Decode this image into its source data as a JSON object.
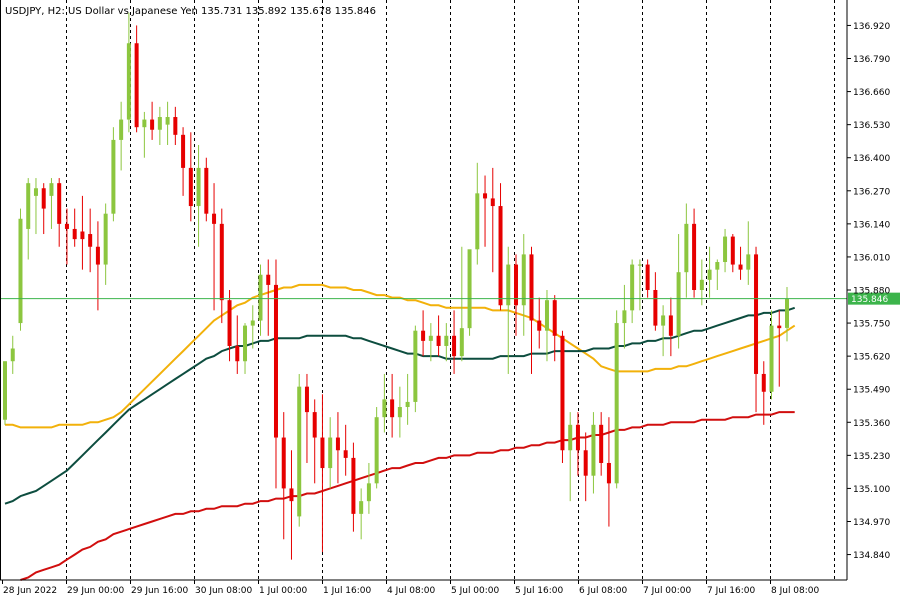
{
  "header": {
    "symbol_line": "USDJPY, H2:  US Dollar vs Japanese Yen  135.731 135.892 135.678 135.846"
  },
  "colors": {
    "background": "#ffffff",
    "bull": "#8cc63f",
    "bear": "#e60000",
    "grid": "#000000",
    "ma_fast": "#f2b10a",
    "ma_mid": "#0d4d3f",
    "ma_slow": "#d10e0e",
    "price_line": "#3cb44b",
    "price_label_bg": "#3cb44b",
    "axis_text": "#000000"
  },
  "chart_data": {
    "type": "candlestick",
    "symbol": "USDJPY",
    "timeframe": "H2",
    "description": "US Dollar vs Japanese Yen",
    "ohlc_current": {
      "open": 135.731,
      "high": 135.892,
      "low": 135.678,
      "close": 135.846
    },
    "current_price_label": "135.846",
    "current_price": 135.846,
    "ylim": [
      134.74,
      137.02
    ],
    "y_ticks": [
      "136.920",
      "136.790",
      "136.660",
      "136.530",
      "136.400",
      "136.270",
      "136.140",
      "136.010",
      "135.880",
      "135.750",
      "135.620",
      "135.490",
      "135.360",
      "135.230",
      "135.100",
      "134.970",
      "134.840"
    ],
    "x_ticks": [
      "28 Jun 2022",
      "29 Jun 00:00",
      "29 Jun 16:00",
      "30 Jun 08:00",
      "1 Jul 00:00",
      "1 Jul 16:00",
      "4 Jul 08:00",
      "5 Jul 00:00",
      "5 Jul 16:00",
      "6 Jul 08:00",
      "7 Jul 00:00",
      "7 Jul 16:00",
      "8 Jul 08:00"
    ],
    "candles": [
      {
        "o": 135.37,
        "h": 135.6,
        "l": 135.35,
        "c": 135.6
      },
      {
        "o": 135.6,
        "h": 135.7,
        "l": 135.55,
        "c": 135.65
      },
      {
        "o": 135.75,
        "h": 136.2,
        "l": 135.72,
        "c": 136.16
      },
      {
        "o": 136.12,
        "h": 136.32,
        "l": 136.0,
        "c": 136.3
      },
      {
        "o": 136.25,
        "h": 136.32,
        "l": 136.1,
        "c": 136.28
      },
      {
        "o": 136.28,
        "h": 136.3,
        "l": 136.1,
        "c": 136.2
      },
      {
        "o": 136.25,
        "h": 136.32,
        "l": 136.12,
        "c": 136.3
      },
      {
        "o": 136.3,
        "h": 136.32,
        "l": 136.05,
        "c": 136.14
      },
      {
        "o": 136.14,
        "h": 136.2,
        "l": 135.98,
        "c": 136.12
      },
      {
        "o": 136.12,
        "h": 136.2,
        "l": 136.05,
        "c": 136.08
      },
      {
        "o": 136.11,
        "h": 136.25,
        "l": 135.96,
        "c": 136.08
      },
      {
        "o": 136.1,
        "h": 136.2,
        "l": 135.95,
        "c": 136.05
      },
      {
        "o": 136.05,
        "h": 136.15,
        "l": 135.8,
        "c": 135.98
      },
      {
        "o": 135.98,
        "h": 136.22,
        "l": 135.9,
        "c": 136.18
      },
      {
        "o": 136.18,
        "h": 136.52,
        "l": 136.15,
        "c": 136.47
      },
      {
        "o": 136.47,
        "h": 136.62,
        "l": 136.35,
        "c": 136.55
      },
      {
        "o": 136.55,
        "h": 136.97,
        "l": 136.5,
        "c": 136.85
      },
      {
        "o": 136.85,
        "h": 136.92,
        "l": 136.5,
        "c": 136.52
      },
      {
        "o": 136.52,
        "h": 136.58,
        "l": 136.4,
        "c": 136.55
      },
      {
        "o": 136.55,
        "h": 136.62,
        "l": 136.47,
        "c": 136.51
      },
      {
        "o": 136.51,
        "h": 136.6,
        "l": 136.45,
        "c": 136.56
      },
      {
        "o": 136.53,
        "h": 136.62,
        "l": 136.45,
        "c": 136.56
      },
      {
        "o": 136.56,
        "h": 136.6,
        "l": 136.45,
        "c": 136.49
      },
      {
        "o": 136.49,
        "h": 136.52,
        "l": 136.25,
        "c": 136.36
      },
      {
        "o": 136.36,
        "h": 136.5,
        "l": 136.15,
        "c": 136.21
      },
      {
        "o": 136.21,
        "h": 136.45,
        "l": 136.05,
        "c": 136.36
      },
      {
        "o": 136.36,
        "h": 136.4,
        "l": 136.15,
        "c": 136.18
      },
      {
        "o": 136.18,
        "h": 136.3,
        "l": 135.8,
        "c": 136.14
      },
      {
        "o": 136.14,
        "h": 136.2,
        "l": 135.75,
        "c": 135.84
      },
      {
        "o": 135.84,
        "h": 135.88,
        "l": 135.6,
        "c": 135.66
      },
      {
        "o": 135.66,
        "h": 135.78,
        "l": 135.55,
        "c": 135.6
      },
      {
        "o": 135.6,
        "h": 135.75,
        "l": 135.55,
        "c": 135.74
      },
      {
        "o": 135.74,
        "h": 135.82,
        "l": 135.65,
        "c": 135.76
      },
      {
        "o": 135.76,
        "h": 135.98,
        "l": 135.7,
        "c": 135.94
      },
      {
        "o": 135.94,
        "h": 136.0,
        "l": 135.7,
        "c": 135.9
      },
      {
        "o": 135.9,
        "h": 136.0,
        "l": 135.1,
        "c": 135.3
      },
      {
        "o": 135.3,
        "h": 135.4,
        "l": 134.9,
        "c": 135.1
      },
      {
        "o": 135.1,
        "h": 135.25,
        "l": 134.82,
        "c": 135.05
      },
      {
        "o": 134.99,
        "h": 135.55,
        "l": 134.95,
        "c": 135.5
      },
      {
        "o": 135.5,
        "h": 135.55,
        "l": 135.2,
        "c": 135.4
      },
      {
        "o": 135.4,
        "h": 135.45,
        "l": 135.12,
        "c": 135.3
      },
      {
        "o": 135.3,
        "h": 135.47,
        "l": 134.85,
        "c": 135.18
      },
      {
        "o": 135.18,
        "h": 135.38,
        "l": 135.1,
        "c": 135.3
      },
      {
        "o": 135.3,
        "h": 135.4,
        "l": 135.12,
        "c": 135.25
      },
      {
        "o": 135.25,
        "h": 135.35,
        "l": 135.15,
        "c": 135.22
      },
      {
        "o": 135.22,
        "h": 135.28,
        "l": 134.93,
        "c": 135.0
      },
      {
        "o": 135.0,
        "h": 135.1,
        "l": 134.9,
        "c": 135.05
      },
      {
        "o": 135.05,
        "h": 135.2,
        "l": 135.0,
        "c": 135.12
      },
      {
        "o": 135.12,
        "h": 135.42,
        "l": 135.1,
        "c": 135.38
      },
      {
        "o": 135.38,
        "h": 135.55,
        "l": 135.32,
        "c": 135.45
      },
      {
        "o": 135.45,
        "h": 135.55,
        "l": 135.3,
        "c": 135.38
      },
      {
        "o": 135.38,
        "h": 135.5,
        "l": 135.3,
        "c": 135.42
      },
      {
        "o": 135.42,
        "h": 135.55,
        "l": 135.35,
        "c": 135.44
      },
      {
        "o": 135.44,
        "h": 135.74,
        "l": 135.4,
        "c": 135.72
      },
      {
        "o": 135.72,
        "h": 135.8,
        "l": 135.62,
        "c": 135.68
      },
      {
        "o": 135.68,
        "h": 135.75,
        "l": 135.6,
        "c": 135.7
      },
      {
        "o": 135.7,
        "h": 135.78,
        "l": 135.62,
        "c": 135.66
      },
      {
        "o": 135.66,
        "h": 135.75,
        "l": 135.6,
        "c": 135.7
      },
      {
        "o": 135.7,
        "h": 135.8,
        "l": 135.55,
        "c": 135.62
      },
      {
        "o": 135.62,
        "h": 136.05,
        "l": 135.6,
        "c": 135.73
      },
      {
        "o": 135.73,
        "h": 136.02,
        "l": 135.7,
        "c": 136.04
      },
      {
        "o": 136.04,
        "h": 136.38,
        "l": 135.98,
        "c": 136.26
      },
      {
        "o": 136.26,
        "h": 136.33,
        "l": 136.05,
        "c": 136.24
      },
      {
        "o": 136.24,
        "h": 136.36,
        "l": 135.95,
        "c": 136.21
      },
      {
        "o": 136.21,
        "h": 136.3,
        "l": 135.8,
        "c": 135.82
      },
      {
        "o": 135.82,
        "h": 136.05,
        "l": 135.55,
        "c": 135.98
      },
      {
        "o": 135.98,
        "h": 136.02,
        "l": 135.7,
        "c": 135.82
      },
      {
        "o": 135.82,
        "h": 136.1,
        "l": 135.7,
        "c": 136.02
      },
      {
        "o": 136.02,
        "h": 136.05,
        "l": 135.55,
        "c": 135.76
      },
      {
        "o": 135.76,
        "h": 135.85,
        "l": 135.65,
        "c": 135.72
      },
      {
        "o": 135.72,
        "h": 135.88,
        "l": 135.6,
        "c": 135.84
      },
      {
        "o": 135.84,
        "h": 135.86,
        "l": 135.6,
        "c": 135.7
      },
      {
        "o": 135.7,
        "h": 135.72,
        "l": 135.2,
        "c": 135.25
      },
      {
        "o": 135.25,
        "h": 135.4,
        "l": 135.05,
        "c": 135.35
      },
      {
        "o": 135.35,
        "h": 135.4,
        "l": 135.15,
        "c": 135.25
      },
      {
        "o": 135.25,
        "h": 135.32,
        "l": 135.05,
        "c": 135.15
      },
      {
        "o": 135.15,
        "h": 135.4,
        "l": 135.08,
        "c": 135.35
      },
      {
        "o": 135.35,
        "h": 135.4,
        "l": 135.15,
        "c": 135.2
      },
      {
        "o": 135.2,
        "h": 135.38,
        "l": 134.95,
        "c": 135.12
      },
      {
        "o": 135.12,
        "h": 135.8,
        "l": 135.1,
        "c": 135.75
      },
      {
        "o": 135.75,
        "h": 135.9,
        "l": 135.65,
        "c": 135.8
      },
      {
        "o": 135.8,
        "h": 136.0,
        "l": 135.75,
        "c": 135.98
      },
      {
        "o": 135.98,
        "h": 136.0,
        "l": 135.8,
        "c": 135.98
      },
      {
        "o": 135.98,
        "h": 136.0,
        "l": 135.85,
        "c": 135.88
      },
      {
        "o": 135.88,
        "h": 135.95,
        "l": 135.72,
        "c": 135.74
      },
      {
        "o": 135.74,
        "h": 135.82,
        "l": 135.62,
        "c": 135.78
      },
      {
        "o": 135.78,
        "h": 135.85,
        "l": 135.62,
        "c": 135.7
      },
      {
        "o": 135.7,
        "h": 136.1,
        "l": 135.65,
        "c": 135.95
      },
      {
        "o": 135.95,
        "h": 136.22,
        "l": 135.85,
        "c": 136.14
      },
      {
        "o": 136.14,
        "h": 136.2,
        "l": 135.85,
        "c": 135.88
      },
      {
        "o": 135.88,
        "h": 136.0,
        "l": 135.82,
        "c": 135.92
      },
      {
        "o": 135.92,
        "h": 136.05,
        "l": 135.85,
        "c": 135.96
      },
      {
        "o": 135.96,
        "h": 136.0,
        "l": 135.88,
        "c": 135.99
      },
      {
        "o": 135.99,
        "h": 136.12,
        "l": 135.95,
        "c": 136.09
      },
      {
        "o": 136.09,
        "h": 136.1,
        "l": 135.95,
        "c": 135.98
      },
      {
        "o": 135.98,
        "h": 136.05,
        "l": 135.92,
        "c": 135.96
      },
      {
        "o": 135.96,
        "h": 136.15,
        "l": 135.9,
        "c": 136.02
      },
      {
        "o": 136.02,
        "h": 136.05,
        "l": 135.4,
        "c": 135.55
      },
      {
        "o": 135.55,
        "h": 135.6,
        "l": 135.35,
        "c": 135.48
      },
      {
        "o": 135.48,
        "h": 135.8,
        "l": 135.45,
        "c": 135.74
      },
      {
        "o": 135.74,
        "h": 135.8,
        "l": 135.5,
        "c": 135.73
      },
      {
        "o": 135.731,
        "h": 135.892,
        "l": 135.678,
        "c": 135.846
      }
    ],
    "series": [
      {
        "color": "#f2b10a",
        "values": [
          135.35,
          135.35,
          135.34,
          135.34,
          135.34,
          135.34,
          135.34,
          135.35,
          135.35,
          135.35,
          135.35,
          135.36,
          135.36,
          135.37,
          135.38,
          135.4,
          135.43,
          135.46,
          135.49,
          135.52,
          135.55,
          135.58,
          135.61,
          135.64,
          135.67,
          135.7,
          135.73,
          135.76,
          135.78,
          135.8,
          135.82,
          135.83,
          135.85,
          135.86,
          135.87,
          135.88,
          135.89,
          135.89,
          135.9,
          135.9,
          135.9,
          135.9,
          135.89,
          135.89,
          135.89,
          135.88,
          135.88,
          135.87,
          135.86,
          135.86,
          135.85,
          135.85,
          135.84,
          135.84,
          135.83,
          135.82,
          135.82,
          135.81,
          135.81,
          135.81,
          135.81,
          135.81,
          135.81,
          135.8,
          135.8,
          135.8,
          135.79,
          135.78,
          135.77,
          135.75,
          135.73,
          135.71,
          135.69,
          135.67,
          135.65,
          135.63,
          135.61,
          135.58,
          135.57,
          135.56,
          135.56,
          135.56,
          135.56,
          135.56,
          135.57,
          135.57,
          135.57,
          135.58,
          135.58,
          135.59,
          135.6,
          135.61,
          135.62,
          135.63,
          135.64,
          135.65,
          135.66,
          135.67,
          135.68,
          135.69,
          135.7,
          135.72,
          135.74
        ]
      },
      {
        "color": "#0d4d3f",
        "values": [
          135.04,
          135.05,
          135.07,
          135.08,
          135.09,
          135.11,
          135.13,
          135.15,
          135.17,
          135.2,
          135.23,
          135.26,
          135.29,
          135.32,
          135.35,
          135.38,
          135.41,
          135.43,
          135.45,
          135.47,
          135.49,
          135.51,
          135.53,
          135.55,
          135.57,
          135.59,
          135.61,
          135.62,
          135.64,
          135.65,
          135.66,
          135.66,
          135.67,
          135.68,
          135.68,
          135.69,
          135.69,
          135.69,
          135.69,
          135.7,
          135.7,
          135.7,
          135.7,
          135.7,
          135.7,
          135.69,
          135.69,
          135.68,
          135.67,
          135.66,
          135.65,
          135.64,
          135.63,
          135.63,
          135.62,
          135.62,
          135.62,
          135.61,
          135.61,
          135.61,
          135.61,
          135.61,
          135.61,
          135.61,
          135.62,
          135.62,
          135.62,
          135.62,
          135.63,
          135.63,
          135.63,
          135.64,
          135.64,
          135.64,
          135.64,
          135.64,
          135.65,
          135.65,
          135.65,
          135.66,
          135.66,
          135.67,
          135.67,
          135.68,
          135.68,
          135.69,
          135.69,
          135.7,
          135.71,
          135.72,
          135.72,
          135.73,
          135.74,
          135.75,
          135.76,
          135.77,
          135.78,
          135.78,
          135.79,
          135.79,
          135.8,
          135.8,
          135.81
        ]
      },
      {
        "color": "#d10e0e",
        "values": [
          134.72,
          134.73,
          134.74,
          134.75,
          134.77,
          134.78,
          134.79,
          134.8,
          134.82,
          134.84,
          134.86,
          134.87,
          134.89,
          134.9,
          134.92,
          134.93,
          134.94,
          134.95,
          134.96,
          134.97,
          134.98,
          134.99,
          135.0,
          135.0,
          135.01,
          135.01,
          135.02,
          135.02,
          135.03,
          135.03,
          135.03,
          135.04,
          135.04,
          135.05,
          135.05,
          135.06,
          135.06,
          135.07,
          135.07,
          135.08,
          135.08,
          135.09,
          135.1,
          135.11,
          135.12,
          135.13,
          135.14,
          135.15,
          135.16,
          135.17,
          135.18,
          135.18,
          135.19,
          135.2,
          135.2,
          135.21,
          135.22,
          135.22,
          135.23,
          135.23,
          135.23,
          135.24,
          135.24,
          135.24,
          135.25,
          135.25,
          135.26,
          135.26,
          135.27,
          135.27,
          135.28,
          135.28,
          135.29,
          135.29,
          135.3,
          135.3,
          135.31,
          135.31,
          135.32,
          135.33,
          135.33,
          135.34,
          135.34,
          135.35,
          135.35,
          135.35,
          135.36,
          135.36,
          135.36,
          135.36,
          135.37,
          135.37,
          135.37,
          135.37,
          135.38,
          135.38,
          135.38,
          135.39,
          135.39,
          135.39,
          135.4,
          135.4,
          135.4
        ]
      }
    ]
  }
}
